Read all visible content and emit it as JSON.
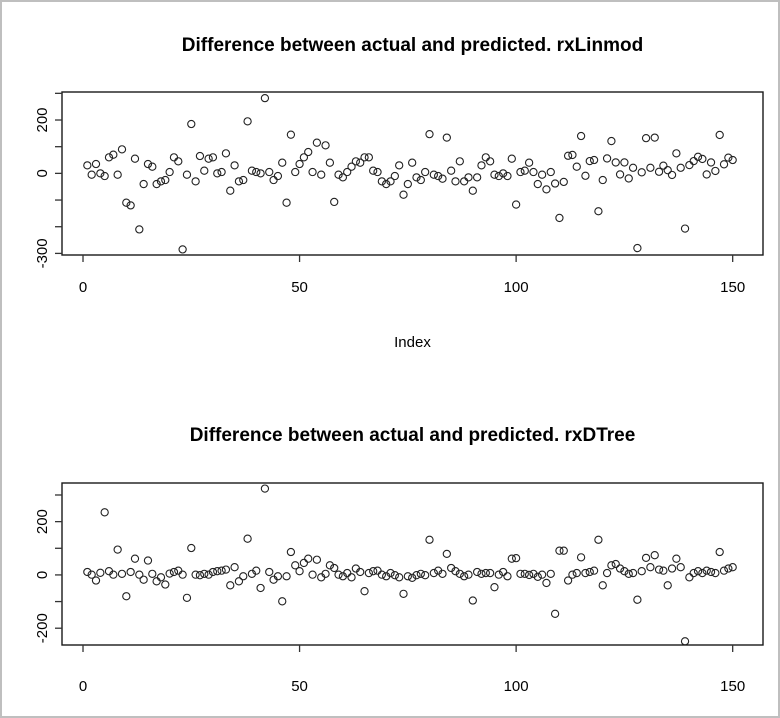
{
  "window": {
    "background": "#ffffff",
    "frame_color": "#bfbfbf"
  },
  "chart_data": [
    {
      "type": "scatter",
      "title": "Difference between actual and predicted. rxLinmod",
      "xlabel": "Index",
      "ylabel": "",
      "marker": "open-circle",
      "marker_color": "#000000",
      "xlim": [
        -4.85,
        157
      ],
      "ylim": [
        -306,
        305
      ],
      "x_ticks": [
        0,
        50,
        100,
        150
      ],
      "y_ticks": [
        300,
        200,
        100,
        0,
        -100,
        -200,
        -300
      ],
      "y_labeled_ticks": [
        {
          "value": 200,
          "label": "200"
        },
        {
          "value": 0,
          "label": "0"
        },
        {
          "value": -300,
          "label": "-300"
        }
      ],
      "x_start": 1,
      "values": [
        30,
        -5,
        35,
        0,
        -10,
        60,
        70,
        -5,
        90,
        -110,
        -120,
        55,
        -210,
        -40,
        35,
        25,
        -40,
        -30,
        -25,
        5,
        60,
        45,
        -285,
        -5,
        185,
        -30,
        65,
        10,
        55,
        60,
        0,
        5,
        75,
        -65,
        30,
        -30,
        -25,
        195,
        10,
        5,
        0,
        282,
        5,
        -25,
        -10,
        40,
        -110,
        145,
        5,
        35,
        60,
        80,
        5,
        115,
        -5,
        105,
        40,
        -107,
        -5,
        -15,
        5,
        25,
        45,
        40,
        60,
        60,
        10,
        5,
        -30,
        -40,
        -30,
        -10,
        30,
        -80,
        -40,
        40,
        -15,
        -25,
        5,
        147,
        -5,
        -10,
        -20,
        134,
        10,
        -30,
        45,
        -30,
        -15,
        -65,
        -15,
        30,
        60,
        45,
        -5,
        -10,
        0,
        -10,
        55,
        -117,
        5,
        10,
        40,
        5,
        -40,
        -5,
        -60,
        5,
        -38,
        -167,
        -32,
        66,
        69,
        25,
        140,
        -9,
        46,
        50,
        -142,
        -25,
        56,
        121,
        41,
        -4,
        41,
        -19,
        21,
        -280,
        4,
        132,
        21,
        134,
        6,
        29,
        12,
        -6,
        75,
        21,
        -207,
        31,
        46,
        62,
        54,
        -4,
        41,
        9,
        144,
        34,
        59,
        50
      ]
    },
    {
      "type": "scatter",
      "title": "Difference between actual and predicted. rxDTree",
      "xlabel": "",
      "ylabel": "",
      "marker": "open-circle",
      "marker_color": "#000000",
      "xlim": [
        -4.85,
        157
      ],
      "ylim": [
        -263,
        345
      ],
      "x_ticks": [
        0,
        50,
        100,
        150
      ],
      "y_ticks": [
        300,
        200,
        100,
        0,
        -100,
        -200
      ],
      "y_labeled_ticks": [
        {
          "value": 200,
          "label": "200"
        },
        {
          "value": 0,
          "label": "0"
        },
        {
          "value": -200,
          "label": "-200"
        }
      ],
      "x_start": 1,
      "values": [
        11,
        1,
        -21,
        8,
        235,
        14,
        1,
        95,
        4,
        -80,
        11,
        61,
        1,
        -18,
        54,
        4,
        -24,
        -9,
        -36,
        5,
        11,
        16,
        1,
        -86,
        101,
        1,
        -1,
        4,
        1,
        11,
        14,
        16,
        20,
        -39,
        29,
        -24,
        -5,
        136,
        4,
        16,
        -49,
        324,
        11,
        -18,
        -5,
        -99,
        -5,
        86,
        36,
        14,
        45,
        61,
        1,
        57,
        -9,
        4,
        36,
        26,
        1,
        -5,
        7,
        -9,
        24,
        11,
        -61,
        7,
        14,
        16,
        1,
        -5,
        7,
        -1,
        -9,
        -71,
        -5,
        -11,
        -1,
        4,
        -1,
        132,
        7,
        16,
        4,
        79,
        26,
        14,
        4,
        -5,
        1,
        -96,
        11,
        4,
        7,
        7,
        -46,
        1,
        11,
        -5,
        61,
        63,
        4,
        4,
        0,
        4,
        -7,
        1,
        -30,
        4,
        -146,
        91,
        91,
        -21,
        1,
        7,
        66,
        7,
        11,
        16,
        132,
        -39,
        7,
        36,
        41,
        24,
        14,
        4,
        7,
        -93,
        14,
        64,
        29,
        74,
        20,
        16,
        -39,
        24,
        61,
        29,
        -249,
        -9,
        7,
        14,
        7,
        16,
        11,
        7,
        86,
        16,
        24,
        29
      ]
    }
  ]
}
